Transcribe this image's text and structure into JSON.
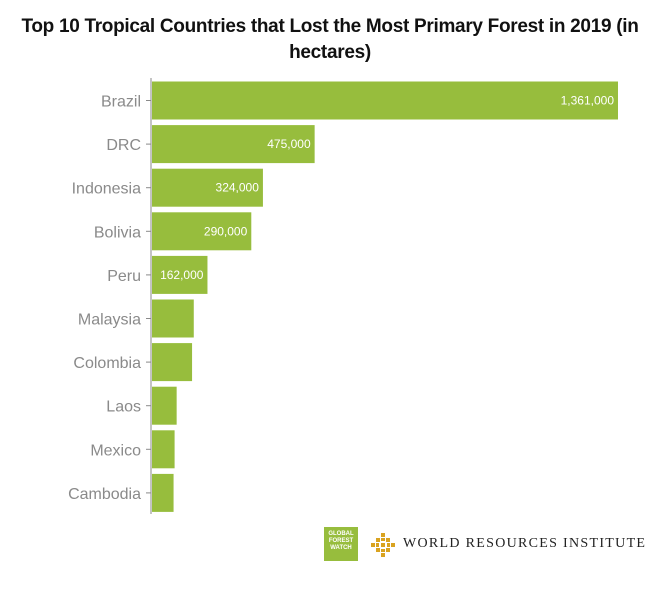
{
  "title": "Top 10 Tropical Countries that Lost the Most Primary Forest in 2019 (in hectares)",
  "colors": {
    "bar": "#97bd3d",
    "axis": "#8a8a8a",
    "logo_gold": "#d9a320"
  },
  "logos": {
    "gfw": "GLOBAL FOREST WATCH",
    "wri": "WORLD RESOURCES INSTITUTE",
    "wri_icon": "wri-compass-icon"
  },
  "chart_data": {
    "type": "bar",
    "orientation": "horizontal",
    "title": "Top 10 Tropical Countries that Lost the Most Primary Forest in 2019 (in hectares)",
    "categories": [
      "Brazil",
      "DRC",
      "Indonesia",
      "Bolivia",
      "Peru",
      "Malaysia",
      "Colombia",
      "Laos",
      "Mexico",
      "Cambodia"
    ],
    "values": [
      1361000,
      475000,
      324000,
      290000,
      162000,
      122000,
      117000,
      72000,
      66000,
      63000
    ],
    "data_labels": [
      "1,361,000",
      "475,000",
      "324,000",
      "290,000",
      "162,000",
      "",
      "",
      "",
      "",
      ""
    ],
    "xlim": [
      0,
      1361000
    ],
    "grid": false,
    "legend": "none"
  }
}
